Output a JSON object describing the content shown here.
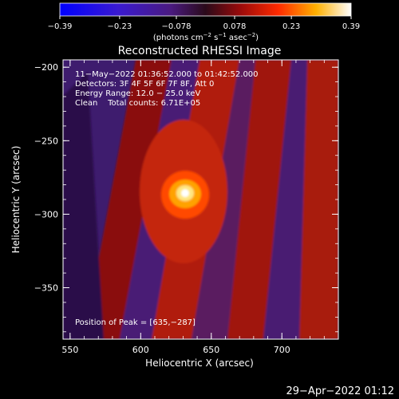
{
  "chart_data": {
    "type": "heatmap",
    "title": "Reconstructed RHESSI Image",
    "xlabel": "Heliocentric X (arcsec)",
    "ylabel": "Heliocentric Y (arcsec)",
    "xlim": [
      545,
      740
    ],
    "ylim": [
      -385,
      -195
    ],
    "xticks": [
      550,
      600,
      650,
      700
    ],
    "yticks": [
      -200,
      -250,
      -300,
      -350
    ],
    "xtick_labels": [
      "550",
      "600",
      "650",
      "700"
    ],
    "ytick_labels": [
      "−200",
      "−250",
      "−300",
      "−350"
    ],
    "colorbar": {
      "min": -0.39,
      "max": 0.39,
      "ticks": [
        -0.39,
        -0.23,
        -0.078,
        0.078,
        0.23,
        0.39
      ],
      "tick_labels": [
        "−0.39",
        "−0.23",
        "−0.078",
        "0.078",
        "0.23",
        "0.39"
      ],
      "unit": "(photons cm",
      "unit_exp1": "−2",
      "unit_mid": " s",
      "unit_exp2": "−1",
      "unit_mid2": " asec",
      "unit_exp3": "−2",
      "unit_end": ")"
    },
    "annotations": [
      "11−May−2022 01:36:52.000 to 01:42:52.000",
      "Detectors: 3F 4F 5F 6F 7F 8F, Att 0",
      "Energy Range: 12.0 − 25.0 keV",
      "Clean    Total counts: 6.71E+05"
    ],
    "peak_label": "Position of Peak = [635,−287]",
    "peak": {
      "x": 635,
      "y": -287,
      "value": 0.39
    }
  },
  "timestamp": "29−Apr−2022 01:12"
}
